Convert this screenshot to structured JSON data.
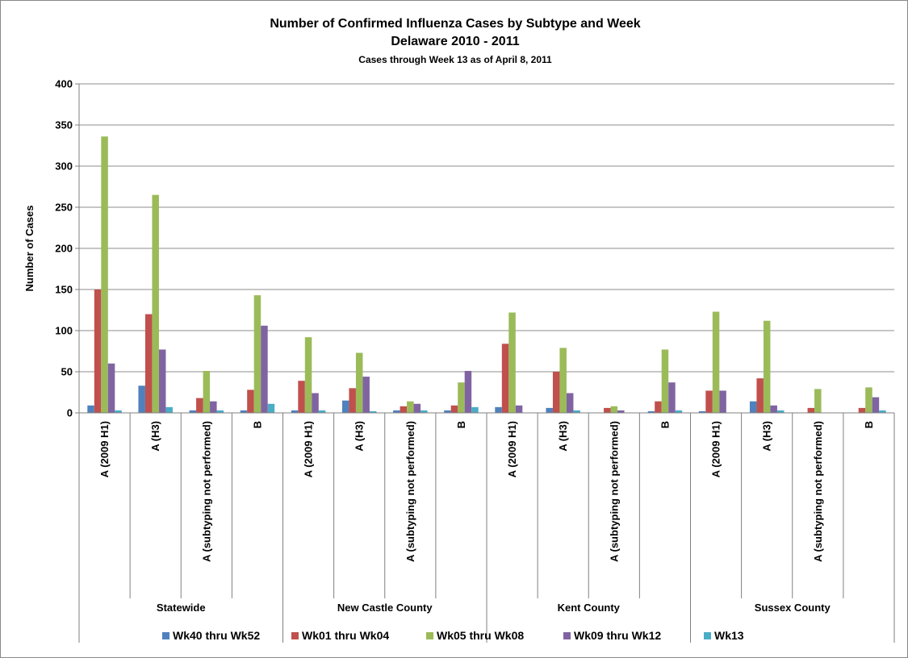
{
  "chart_data": {
    "type": "bar",
    "title": "Number of Confirmed Influenza Cases by Subtype and Week",
    "subtitle": "Delaware 2010 - 2011",
    "subtitle2": "Cases through Week 13 as of April 8, 2011",
    "ylabel": "Number of Cases",
    "xlabel": "",
    "ylim": [
      0,
      400
    ],
    "yticks": [
      "0",
      "50",
      "100",
      "150",
      "200",
      "250",
      "300",
      "350",
      "400"
    ],
    "grid": true,
    "legend_position": "bottom",
    "groups": [
      "Statewide",
      "New Castle County",
      "Kent County",
      "Sussex County"
    ],
    "subcategories": [
      "A (2009 H1)",
      "A (H3)",
      "A (subtyping not performed)",
      "B"
    ],
    "series": [
      {
        "name": "Wk40 thru Wk52",
        "color": "#4F81BD",
        "values": [
          9,
          33,
          3,
          3,
          3,
          15,
          3,
          3,
          7,
          6,
          0,
          2,
          2,
          14,
          0,
          0
        ]
      },
      {
        "name": "Wk01 thru Wk04",
        "color": "#C0504D",
        "values": [
          150,
          120,
          18,
          28,
          39,
          30,
          8,
          9,
          84,
          50,
          6,
          14,
          27,
          42,
          6,
          6
        ]
      },
      {
        "name": "Wk05 thru Wk08",
        "color": "#9BBB59",
        "values": [
          336,
          265,
          51,
          143,
          92,
          73,
          14,
          37,
          122,
          79,
          8,
          77,
          123,
          112,
          29,
          31
        ]
      },
      {
        "name": "Wk09 thru Wk12",
        "color": "#8064A2",
        "values": [
          60,
          77,
          14,
          106,
          24,
          44,
          11,
          51,
          9,
          24,
          3,
          37,
          27,
          9,
          0,
          19
        ]
      },
      {
        "name": "Wk13",
        "color": "#4BACC6",
        "values": [
          3,
          7,
          3,
          11,
          3,
          2,
          3,
          7,
          0,
          3,
          0,
          3,
          0,
          3,
          0,
          3
        ]
      }
    ]
  }
}
